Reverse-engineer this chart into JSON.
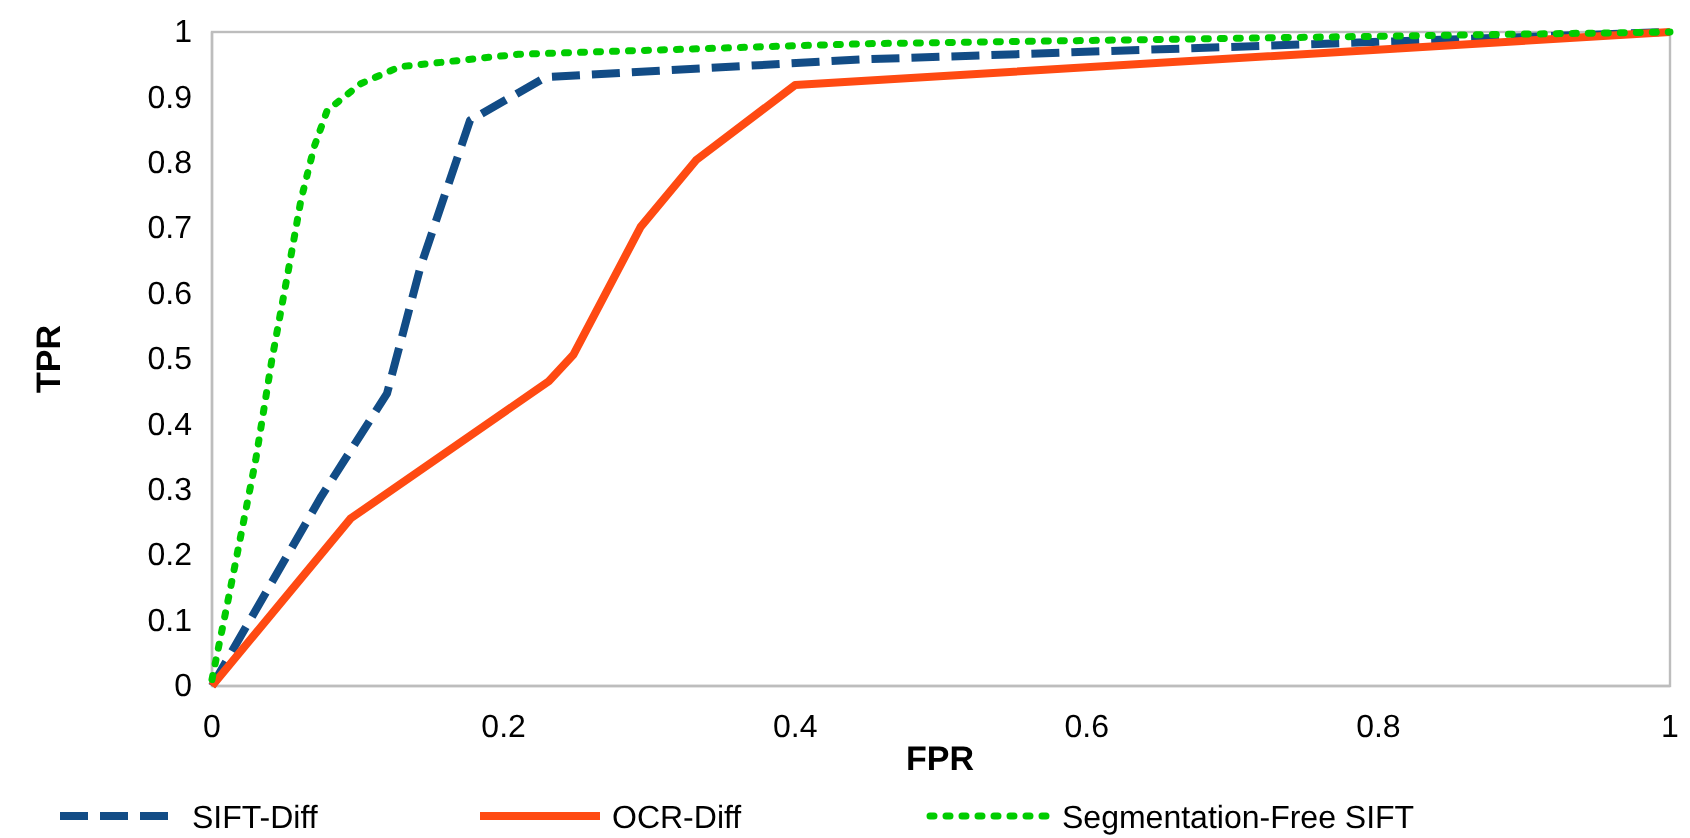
{
  "chart_data": {
    "type": "line",
    "xlabel": "FPR",
    "ylabel": "TPR",
    "xlim": [
      0,
      1
    ],
    "ylim": [
      0,
      1
    ],
    "xticks": [
      0,
      0.2,
      0.4,
      0.6,
      0.8,
      1
    ],
    "yticks": [
      0,
      0.1,
      0.2,
      0.3,
      0.4,
      0.5,
      0.6,
      0.7,
      0.8,
      0.9,
      1
    ],
    "grid": false,
    "legend": "bottom",
    "marker": "none",
    "series": [
      {
        "name": "SIFT-Diff",
        "color": "#124c86",
        "line_style": "dashed",
        "x": [
          0,
          0.075,
          0.12,
          0.143,
          0.177,
          0.229,
          0.445,
          1
        ],
        "values": [
          0,
          0.29,
          0.447,
          0.641,
          0.865,
          0.931,
          0.958,
          1
        ]
      },
      {
        "name": "OCR-Diff",
        "color": "#ff4a12",
        "line_style": "solid",
        "x": [
          0,
          0.095,
          0.231,
          0.248,
          0.294,
          0.332,
          0.4,
          1
        ],
        "values": [
          0,
          0.256,
          0.466,
          0.507,
          0.702,
          0.804,
          0.919,
          1
        ]
      },
      {
        "name": "Segmentation-Free SIFT",
        "color": "#00cc00",
        "line_style": "dotted",
        "x": [
          0,
          0.012,
          0.03,
          0.041,
          0.052,
          0.061,
          0.07,
          0.079,
          0.102,
          0.129,
          0.21,
          0.445,
          1
        ],
        "values": [
          0.01,
          0.142,
          0.346,
          0.498,
          0.631,
          0.743,
          0.824,
          0.88,
          0.921,
          0.947,
          0.966,
          0.982,
          1
        ]
      }
    ]
  }
}
